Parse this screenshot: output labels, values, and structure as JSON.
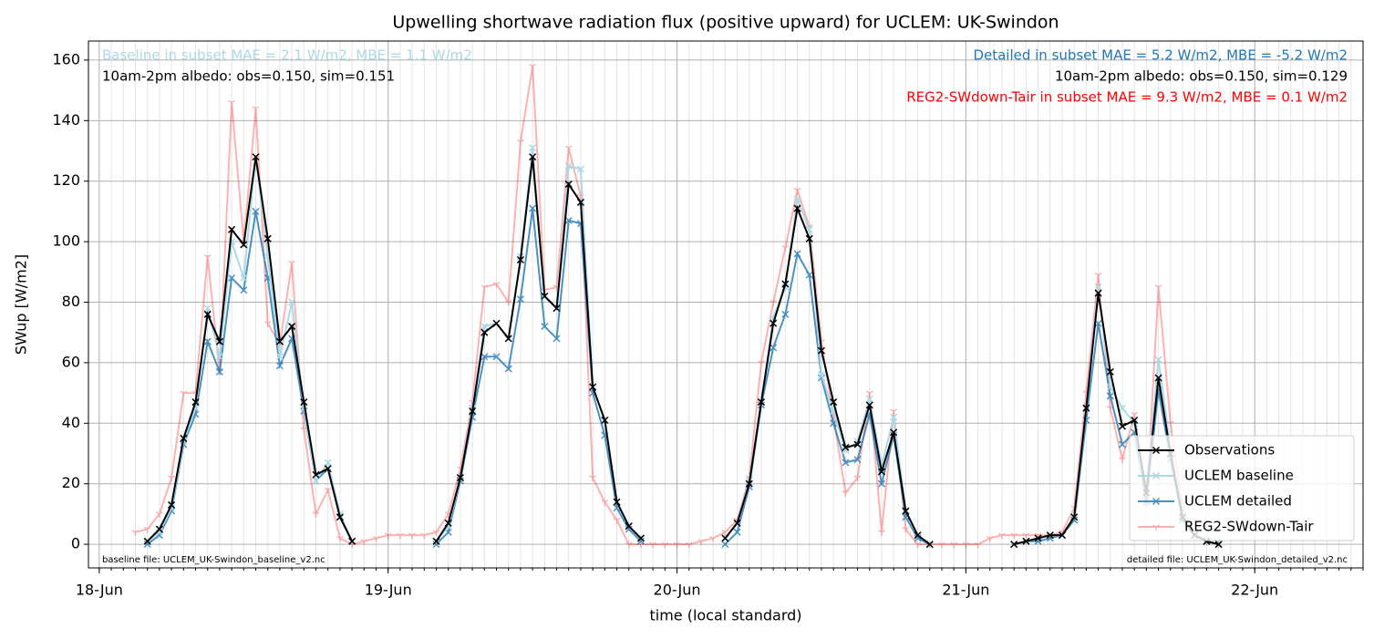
{
  "chart_data": {
    "type": "line",
    "title": "Upwelling shortwave radiation flux (positive upward) for UCLEM: UK-Swindon",
    "xlabel": "time (local standard)",
    "ylabel": "SWup [W/m2]",
    "x": [
      3,
      4,
      5,
      6,
      7,
      8,
      9,
      10,
      11,
      12,
      13,
      14,
      15,
      16,
      17,
      18,
      19,
      20,
      21,
      22,
      23,
      24,
      25,
      26,
      27,
      28,
      29,
      30,
      31,
      32,
      33,
      34,
      35,
      36,
      37,
      38,
      39,
      40,
      41,
      42,
      43,
      44,
      45,
      46,
      47,
      48,
      49,
      50,
      51,
      52,
      53,
      54,
      55,
      56,
      57,
      58,
      59,
      60,
      61,
      62,
      63,
      64,
      65,
      66,
      67,
      68,
      69,
      70,
      71,
      72,
      73,
      74,
      75,
      76,
      77,
      78,
      79,
      80,
      81,
      82,
      83,
      84,
      85,
      86,
      87,
      88,
      89,
      90,
      91,
      92,
      93
    ],
    "xlim": [
      -0.9,
      105
    ],
    "xticks": [
      {
        "value": 0,
        "label": "18-Jun"
      },
      {
        "value": 24,
        "label": "19-Jun"
      },
      {
        "value": 48,
        "label": "20-Jun"
      },
      {
        "value": 72,
        "label": "21-Jun"
      },
      {
        "value": 96,
        "label": "22-Jun"
      }
    ],
    "ylim": [
      -7.8,
      166.3
    ],
    "yticks": [
      0,
      20,
      40,
      60,
      80,
      100,
      120,
      140,
      160
    ],
    "grid": true,
    "minor_grid": true,
    "legend": "lower right",
    "series": [
      {
        "name": "Observations",
        "color": "#000000",
        "alpha": 1,
        "marker": "x",
        "values": [
          null,
          1,
          5,
          13,
          35,
          47,
          76,
          67,
          104,
          99,
          128,
          101,
          67,
          72,
          47,
          23,
          25,
          9,
          1,
          null,
          null,
          null,
          null,
          null,
          null,
          1,
          7,
          22,
          44,
          70,
          73,
          68,
          94,
          128,
          82,
          78,
          119,
          113,
          52,
          41,
          14,
          6,
          2,
          null,
          null,
          null,
          null,
          null,
          null,
          2,
          7,
          20,
          47,
          73,
          86,
          111,
          101,
          64,
          47,
          32,
          33,
          46,
          24,
          37,
          11,
          3,
          0,
          null,
          null,
          null,
          null,
          null,
          null,
          0,
          1,
          2,
          3,
          3,
          9,
          45,
          83,
          57,
          39,
          41,
          17,
          55,
          30,
          9,
          3,
          1,
          0
        ]
      },
      {
        "name": "UCLEM baseline",
        "color": "#add8e6",
        "alpha": 1,
        "marker": "x",
        "values": [
          null,
          1,
          4,
          12,
          34,
          45,
          78,
          62,
          100,
          88,
          128,
          95,
          62,
          80,
          45,
          21,
          27,
          10,
          1,
          null,
          null,
          null,
          null,
          null,
          null,
          1,
          6,
          22,
          45,
          72,
          73,
          68,
          95,
          131,
          82,
          78,
          125,
          124,
          52,
          41,
          14,
          6,
          2,
          null,
          null,
          null,
          null,
          null,
          null,
          2,
          7,
          21,
          47,
          75,
          85,
          114,
          104,
          56,
          44,
          31,
          34,
          48,
          26,
          42,
          11,
          3,
          0,
          null,
          null,
          null,
          null,
          null,
          null,
          0,
          1,
          2,
          3,
          3,
          9,
          45,
          85,
          52,
          45,
          40,
          18,
          61,
          32,
          10,
          3,
          2,
          1
        ]
      },
      {
        "name": "UCLEM detailed",
        "color": "#1f77b4",
        "alpha": 0.8,
        "marker": "x",
        "values": [
          null,
          0,
          3,
          11,
          33,
          43,
          67,
          57,
          88,
          84,
          110,
          88,
          59,
          68,
          44,
          21,
          25,
          9,
          1,
          null,
          null,
          null,
          null,
          null,
          null,
          0,
          4,
          21,
          42,
          62,
          62,
          58,
          81,
          111,
          72,
          68,
          107,
          106,
          50,
          36,
          12,
          5,
          1,
          null,
          null,
          null,
          null,
          null,
          null,
          0,
          4,
          19,
          46,
          65,
          76,
          96,
          89,
          55,
          40,
          27,
          28,
          43,
          20,
          36,
          9,
          2,
          0,
          null,
          null,
          null,
          null,
          null,
          null,
          0,
          1,
          1,
          2,
          3,
          8,
          41,
          73,
          49,
          33,
          37,
          14,
          51,
          28,
          8,
          3,
          1,
          0
        ]
      },
      {
        "name": "REG2-SWdown-Tair",
        "color": "#ff0000",
        "alpha": 0.3,
        "marker": "tri",
        "values": [
          4,
          5,
          10,
          22,
          50,
          50,
          95,
          57,
          146,
          100,
          144,
          73,
          66,
          93,
          38,
          10,
          18,
          2,
          0,
          1,
          2,
          3,
          3,
          3,
          3,
          4,
          10,
          25,
          47,
          85,
          86,
          80,
          133,
          158,
          84,
          85,
          131,
          115,
          22,
          14,
          8,
          0,
          0,
          0,
          0,
          0,
          0,
          1,
          2,
          4,
          8,
          22,
          60,
          80,
          98,
          117,
          105,
          67,
          42,
          17,
          22,
          50,
          4,
          44,
          5,
          0,
          0,
          0,
          0,
          0,
          0,
          2,
          3,
          3,
          3,
          3,
          3,
          4,
          12,
          50,
          89,
          45,
          28,
          43,
          13,
          85,
          40,
          12,
          3,
          1,
          0
        ]
      }
    ],
    "annotations": [
      {
        "text": "Baseline in subset MAE = 2.1 W/m2, MBE = 1.1 W/m2",
        "color": "#add8e6",
        "side": "left"
      },
      {
        "text": "10am-2pm albedo: obs=0.150, sim=0.151",
        "color": "#000000",
        "side": "left"
      },
      {
        "text": "Detailed in subset MAE = 5.2 W/m2, MBE = -5.2 W/m2",
        "color": "#1f77b4",
        "side": "right"
      },
      {
        "text": "10am-2pm albedo: obs=0.150, sim=0.129",
        "color": "#000000",
        "side": "right"
      },
      {
        "text": "REG2-SWdown-Tair in subset MAE = 9.3 W/m2, MBE = 0.1 W/m2",
        "color": "#ff0000",
        "side": "right"
      }
    ],
    "footnotes": [
      {
        "text": "baseline file: UCLEM_UK-Swindon_baseline_v2.nc",
        "side": "left"
      },
      {
        "text": "detailed file: UCLEM_UK-Swindon_detailed_v2.nc",
        "side": "right"
      }
    ]
  }
}
